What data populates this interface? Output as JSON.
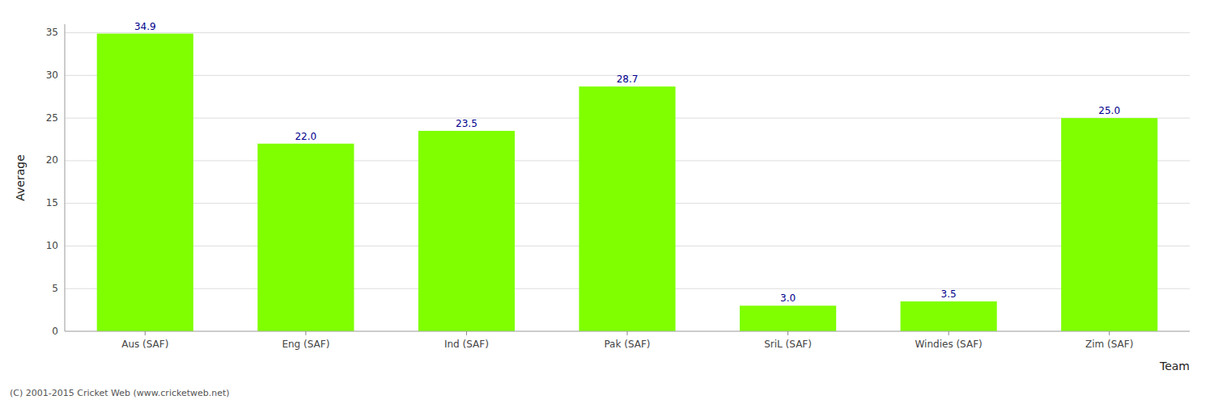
{
  "chart_data": {
    "type": "bar",
    "categories": [
      "Aus (SAF)",
      "Eng (SAF)",
      "Ind (SAF)",
      "Pak (SAF)",
      "SriL (SAF)",
      "Windies (SAF)",
      "Zim (SAF)"
    ],
    "values": [
      34.9,
      22.0,
      23.5,
      28.7,
      3.0,
      3.5,
      25.0
    ],
    "value_labels": [
      "34.9",
      "22.0",
      "23.5",
      "28.7",
      "3.0",
      "3.5",
      "25.0"
    ],
    "data_labels": true,
    "color": "#7FFF00",
    "ylabel": "Average",
    "xlabel": "Team",
    "ylim": [
      0,
      36
    ],
    "yticks": [
      0,
      5,
      10,
      15,
      20,
      25,
      30,
      35
    ],
    "grid": true,
    "annotations": [
      "(C) 2001-2015 Cricket Web (www.cricketweb.net)"
    ]
  }
}
